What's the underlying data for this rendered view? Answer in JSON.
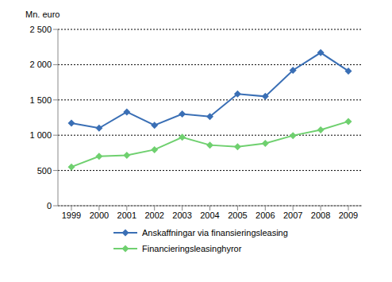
{
  "chart_data": {
    "type": "line",
    "y_label": "Mn. euro",
    "categories": [
      "1999",
      "2000",
      "2001",
      "2002",
      "2003",
      "2004",
      "2005",
      "2006",
      "2007",
      "2008",
      "2009"
    ],
    "series": [
      {
        "name": "Anskaffningar via finansieringsleasing",
        "color": "#3a6fb5",
        "values": [
          1170,
          1100,
          1330,
          1140,
          1300,
          1265,
          1585,
          1550,
          1920,
          2170,
          1910
        ]
      },
      {
        "name": "Financieringsleasinghyror",
        "color": "#6fd06f",
        "values": [
          550,
          700,
          715,
          795,
          970,
          860,
          835,
          885,
          995,
          1075,
          1195
        ]
      }
    ],
    "ylim": [
      0,
      2500
    ],
    "yticks": [
      0,
      500,
      {
        "value": 1000,
        "label": "1 000"
      },
      {
        "value": 1500,
        "label": "1 500"
      },
      {
        "value": 2000,
        "label": "2 000"
      },
      {
        "value": 2500,
        "label": "2 500"
      }
    ],
    "grid": true,
    "marker": "diamond",
    "legend": "bottom"
  }
}
